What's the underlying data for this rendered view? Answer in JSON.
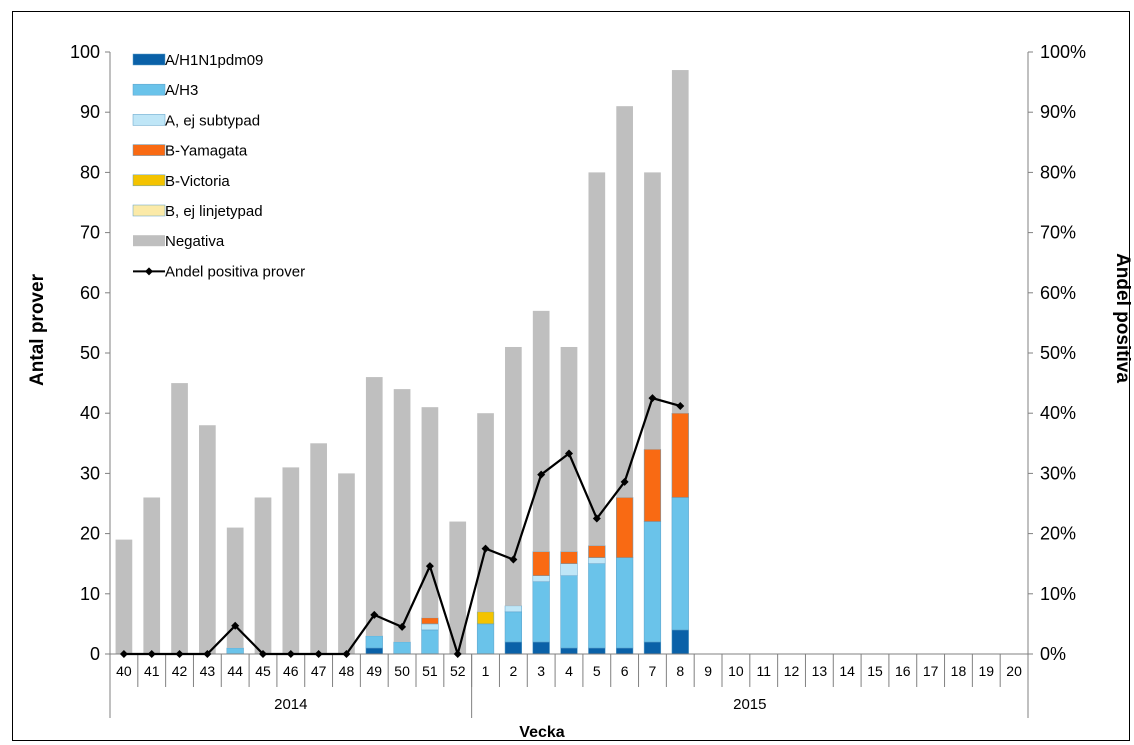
{
  "chart_data": {
    "type": "bar",
    "title": "",
    "xlabel": "Vecka",
    "ylabel": "Antal prover",
    "y2label": "Andel positiva",
    "ylim": [
      0,
      100
    ],
    "y2lim": [
      0,
      1
    ],
    "yticks": [
      "0",
      "10",
      "20",
      "30",
      "40",
      "50",
      "60",
      "70",
      "80",
      "90",
      "100"
    ],
    "y2ticks": [
      "0%",
      "10%",
      "20%",
      "30%",
      "40%",
      "50%",
      "60%",
      "70%",
      "80%",
      "90%",
      "100%"
    ],
    "grid": false,
    "legend_position": "top-left",
    "stacked": true,
    "categories": [
      "40",
      "41",
      "42",
      "43",
      "44",
      "45",
      "46",
      "47",
      "48",
      "49",
      "50",
      "51",
      "52",
      "1",
      "2",
      "3",
      "4",
      "5",
      "6",
      "7",
      "8",
      "9",
      "10",
      "11",
      "12",
      "13",
      "14",
      "15",
      "16",
      "17",
      "18",
      "19",
      "20"
    ],
    "groups": [
      {
        "label": "2014",
        "count": 13
      },
      {
        "label": "2015",
        "count": 20
      }
    ],
    "series": [
      {
        "name": "A/H1N1pdm09",
        "color": "#0a61a8",
        "values": [
          0,
          0,
          0,
          0,
          0,
          0,
          0,
          0,
          0,
          1,
          0,
          0,
          0,
          0,
          2,
          2,
          1,
          1,
          1,
          2,
          4,
          null,
          null,
          null,
          null,
          null,
          null,
          null,
          null,
          null,
          null,
          null,
          null
        ]
      },
      {
        "name": "A/H3",
        "color": "#6ac3ea",
        "values": [
          0,
          0,
          0,
          0,
          1,
          0,
          0,
          0,
          0,
          2,
          2,
          4,
          0,
          5,
          5,
          10,
          12,
          14,
          15,
          20,
          22,
          null,
          null,
          null,
          null,
          null,
          null,
          null,
          null,
          null,
          null,
          null,
          null
        ]
      },
      {
        "name": "A, ej subtypad",
        "color": "#bfe6f7",
        "values": [
          0,
          0,
          0,
          0,
          0,
          0,
          0,
          0,
          0,
          0,
          0,
          1,
          0,
          0,
          1,
          1,
          2,
          1,
          0,
          0,
          0,
          null,
          null,
          null,
          null,
          null,
          null,
          null,
          null,
          null,
          null,
          null,
          null
        ]
      },
      {
        "name": "B-Yamagata",
        "color": "#f96a13",
        "values": [
          0,
          0,
          0,
          0,
          0,
          0,
          0,
          0,
          0,
          0,
          0,
          1,
          0,
          0,
          0,
          4,
          2,
          2,
          10,
          12,
          14,
          null,
          null,
          null,
          null,
          null,
          null,
          null,
          null,
          null,
          null,
          null,
          null
        ]
      },
      {
        "name": "B-Victoria",
        "color": "#f4c300",
        "values": [
          0,
          0,
          0,
          0,
          0,
          0,
          0,
          0,
          0,
          0,
          0,
          0,
          0,
          2,
          0,
          0,
          0,
          0,
          0,
          0,
          0,
          null,
          null,
          null,
          null,
          null,
          null,
          null,
          null,
          null,
          null,
          null,
          null
        ]
      },
      {
        "name": "B, ej linjetypad",
        "color": "#fbeaa8",
        "values": [
          0,
          0,
          0,
          0,
          0,
          0,
          0,
          0,
          0,
          0,
          0,
          0,
          0,
          0,
          0,
          0,
          0,
          0,
          0,
          0,
          0,
          null,
          null,
          null,
          null,
          null,
          null,
          null,
          null,
          null,
          null,
          null,
          null
        ]
      },
      {
        "name": "Negativa",
        "color": "#bfbfbf",
        "values": [
          19,
          26,
          45,
          38,
          20,
          26,
          31,
          35,
          30,
          43,
          42,
          35,
          22,
          33,
          43,
          40,
          34,
          62,
          65,
          46,
          57,
          null,
          null,
          null,
          null,
          null,
          null,
          null,
          null,
          null,
          null,
          null,
          null
        ]
      }
    ],
    "line": {
      "name": "Andel positiva prover",
      "color": "#000000",
      "axis": "right",
      "values": [
        0,
        0,
        0,
        0,
        0.047,
        0,
        0,
        0,
        0,
        0.065,
        0.045,
        0.146,
        0,
        0.175,
        0.157,
        0.298,
        0.333,
        0.225,
        0.286,
        0.425,
        0.412,
        null,
        null,
        null,
        null,
        null,
        null,
        null,
        null,
        null,
        null,
        null,
        null
      ]
    }
  }
}
